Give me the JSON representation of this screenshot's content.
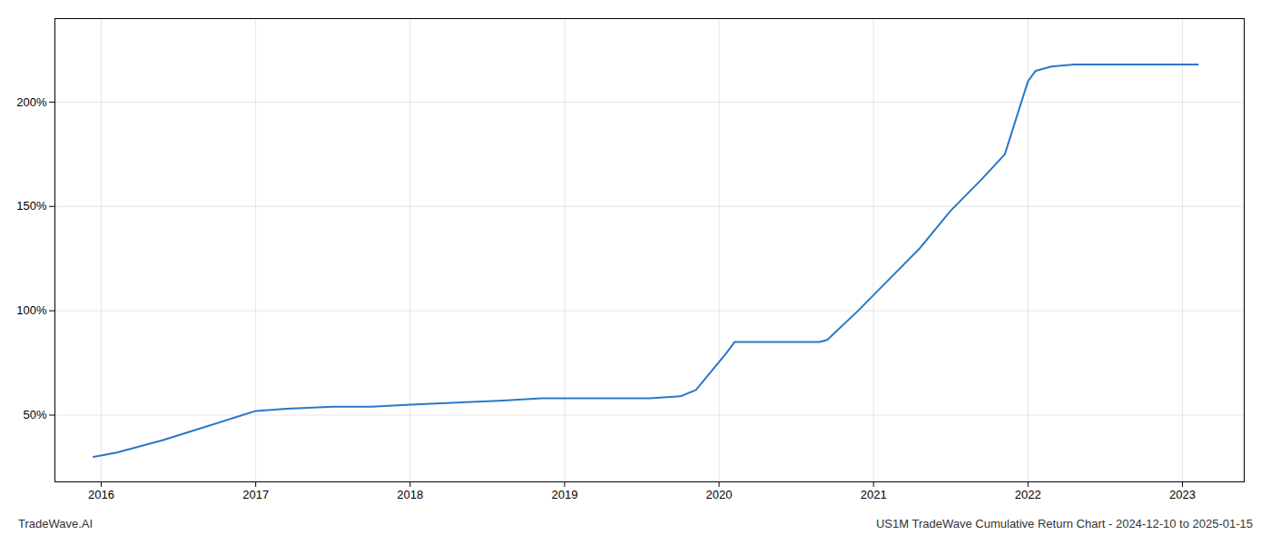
{
  "chart_data": {
    "type": "line",
    "x": [
      2015.95,
      2016.1,
      2016.4,
      2016.7,
      2017.0,
      2017.2,
      2017.5,
      2017.75,
      2018.0,
      2018.3,
      2018.6,
      2018.85,
      2019.0,
      2019.05,
      2019.55,
      2019.75,
      2019.85,
      2020.05,
      2020.1,
      2020.65,
      2020.7,
      2020.9,
      2021.1,
      2021.3,
      2021.5,
      2021.7,
      2021.85,
      2022.0,
      2022.05,
      2022.15,
      2022.3,
      2022.5,
      2022.7,
      2022.9,
      2023.0,
      2023.1
    ],
    "values": [
      30,
      32,
      38,
      45,
      52,
      53,
      54,
      54,
      55,
      56,
      57,
      58,
      58,
      58,
      58,
      59,
      62,
      80,
      85,
      85,
      86,
      100,
      115,
      130,
      148,
      163,
      175,
      210,
      215,
      217,
      218,
      218,
      218,
      218,
      218,
      218
    ],
    "color": "#2878c8",
    "xlim": [
      2015.7,
      2023.4
    ],
    "xticks": [
      2016,
      2017,
      2018,
      2019,
      2020,
      2021,
      2022,
      2023
    ],
    "ylim": [
      18,
      240
    ],
    "yticks": [
      {
        "value": 50,
        "label": "50%"
      },
      {
        "value": 100,
        "label": "100%"
      },
      {
        "value": 150,
        "label": "150%"
      },
      {
        "value": 200,
        "label": "200%"
      }
    ],
    "grid": true,
    "annotations": [
      "TradeWave.AI",
      "US1M TradeWave Cumulative Return Chart - 2024-12-10 to 2025-01-15"
    ]
  }
}
